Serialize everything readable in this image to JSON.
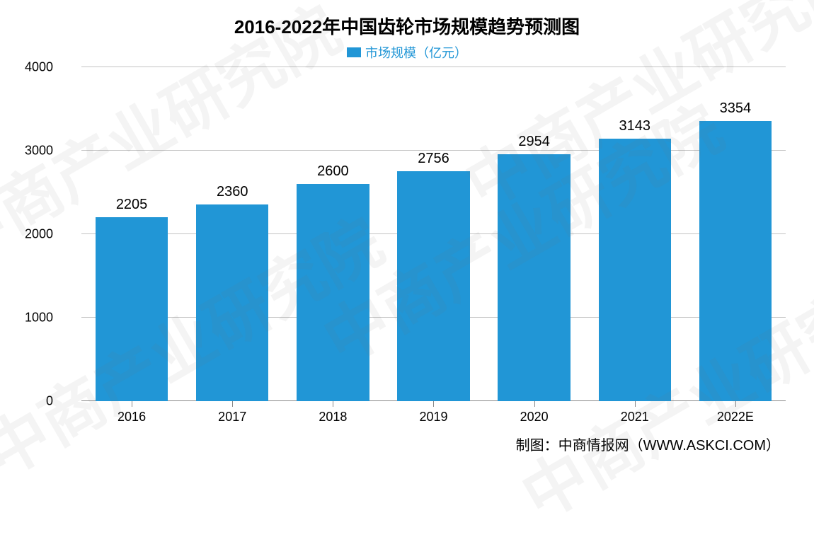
{
  "chart": {
    "type": "bar",
    "title": "2016-2022年中国齿轮市场规模趋势预测图",
    "title_fontsize": 26,
    "title_color": "#000000",
    "legend": {
      "label": "市场规模（亿元）",
      "swatch_color": "#2196d6",
      "text_color": "#2196d6",
      "fontsize": 18
    },
    "categories": [
      "2016",
      "2017",
      "2018",
      "2019",
      "2020",
      "2021",
      "2022E"
    ],
    "values": [
      2205,
      2360,
      2600,
      2756,
      2954,
      3143,
      3354
    ],
    "bar_color": "#2196d6",
    "bar_width_ratio": 0.72,
    "value_label_fontsize": 20,
    "value_label_color": "#000000",
    "y_axis": {
      "min": 0,
      "max": 4000,
      "ticks": [
        0,
        1000,
        2000,
        3000,
        4000
      ],
      "tick_fontsize": 18,
      "tick_color": "#000000"
    },
    "x_axis": {
      "tick_fontsize": 18,
      "tick_color": "#000000"
    },
    "grid_color": "#c3c3c3",
    "axis_line_color": "#888888",
    "background_color": "#ffffff"
  },
  "credit": "制图：中商情报网（WWW.ASKCI.COM）",
  "watermark_text": "中商产业研究院"
}
